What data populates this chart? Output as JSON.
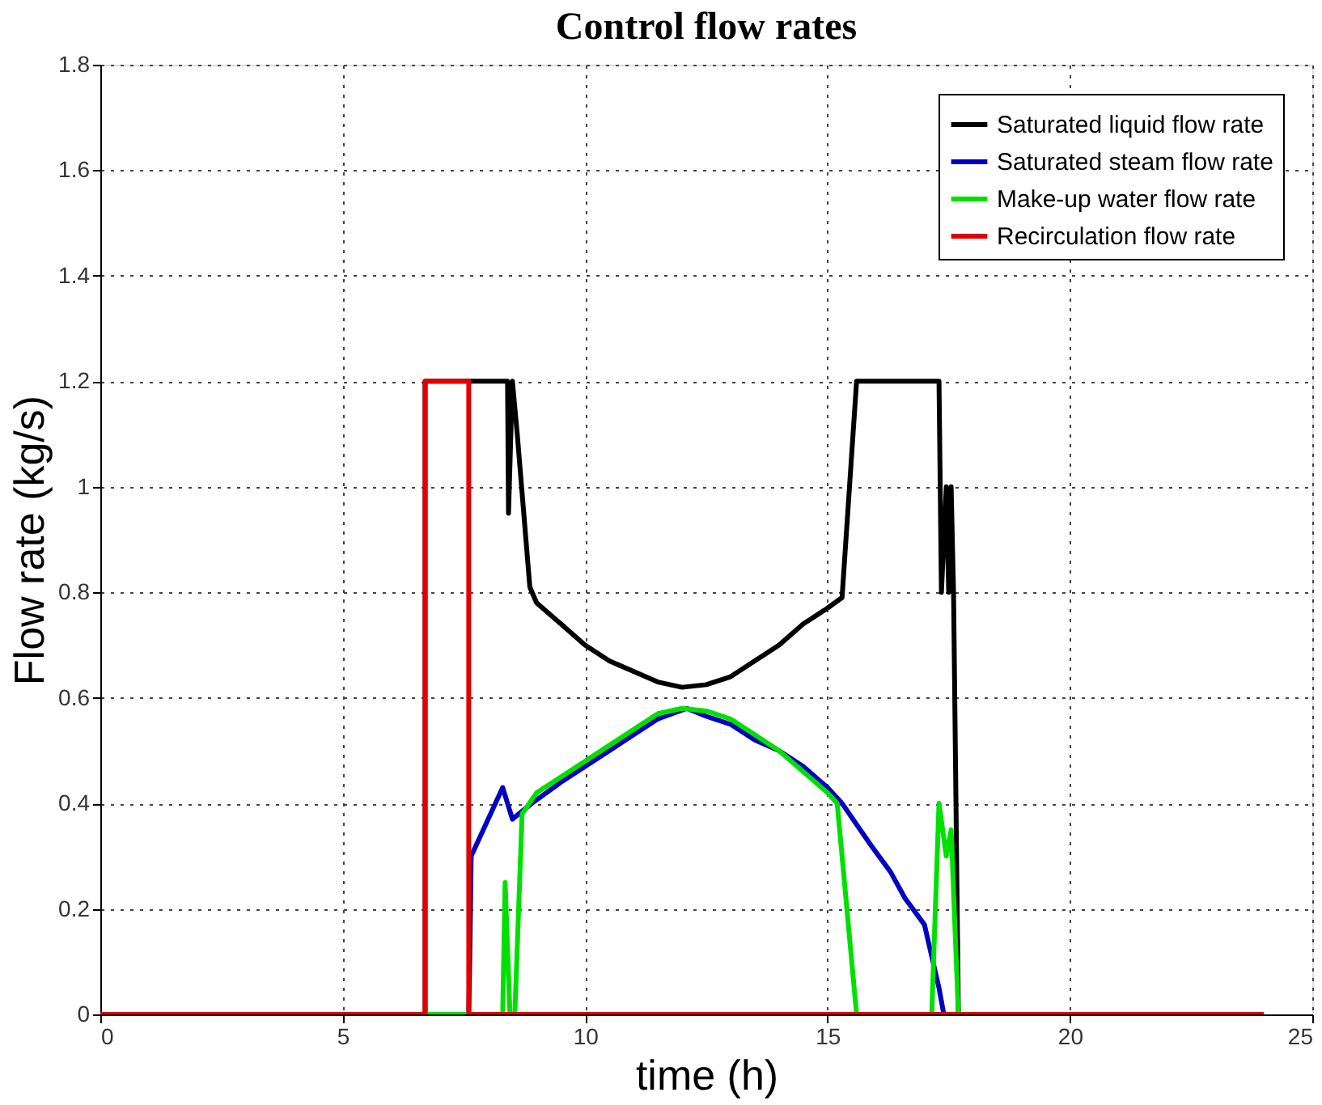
{
  "chart_data": {
    "type": "line",
    "title": "Control flow rates",
    "xlabel": "time (h)",
    "ylabel": "Flow rate (kg/s)",
    "xlim": [
      0,
      25
    ],
    "xticks": [
      0,
      5,
      10,
      15,
      20,
      25
    ],
    "ylim": [
      0,
      1.8
    ],
    "yticks": [
      0,
      0.2,
      0.4,
      0.6,
      0.8,
      1,
      1.2,
      1.4,
      1.6,
      1.8
    ],
    "grid": true,
    "legend": "top right",
    "marker": "none",
    "line_style": "solid",
    "series": [
      {
        "name": "Saturated liquid flow rate",
        "color": "#000000",
        "x": [
          0,
          6.7,
          6.7,
          8.4,
          8.42,
          8.5,
          8.6,
          8.86,
          9.0,
          9.5,
          10,
          10.5,
          11,
          11.5,
          12,
          12.5,
          13,
          13.5,
          14,
          14.5,
          15,
          15.3,
          15.6,
          17.3,
          17.35,
          17.45,
          17.5,
          17.55,
          17.6,
          17.7,
          24
        ],
        "values": [
          0,
          0,
          1.2,
          1.2,
          0.95,
          1.2,
          1.1,
          0.81,
          0.78,
          0.74,
          0.7,
          0.67,
          0.65,
          0.63,
          0.62,
          0.625,
          0.64,
          0.67,
          0.7,
          0.74,
          0.77,
          0.79,
          1.2,
          1.2,
          0.8,
          1.0,
          0.8,
          1.0,
          0.8,
          0,
          0
        ]
      },
      {
        "name": "Saturated steam flow rate",
        "color": "#0000c0",
        "x": [
          0,
          7.6,
          7.62,
          7.65,
          7.9,
          8.3,
          8.5,
          8.9,
          9.5,
          10,
          10.5,
          11,
          11.5,
          12.1,
          12.5,
          13,
          13.5,
          14,
          14.5,
          15,
          15.3,
          15.9,
          16.3,
          16.6,
          17.0,
          17.3,
          17.4,
          24
        ],
        "values": [
          0,
          0,
          0.1,
          0.3,
          0.35,
          0.43,
          0.37,
          0.4,
          0.44,
          0.47,
          0.5,
          0.53,
          0.56,
          0.58,
          0.565,
          0.55,
          0.52,
          0.5,
          0.47,
          0.43,
          0.4,
          0.32,
          0.27,
          0.22,
          0.17,
          0.05,
          0,
          0
        ]
      },
      {
        "name": "Make-up water flow rate",
        "color": "#00e000",
        "x": [
          0,
          8.3,
          8.35,
          8.45,
          8.55,
          8.7,
          9.0,
          9.5,
          10,
          10.5,
          11,
          11.5,
          12,
          12.5,
          13,
          13.5,
          14,
          14.5,
          15,
          15.2,
          15.6,
          17.15,
          17.3,
          17.45,
          17.55,
          17.7,
          24
        ],
        "values": [
          0,
          0,
          0.25,
          0,
          0,
          0.38,
          0.42,
          0.45,
          0.48,
          0.51,
          0.54,
          0.57,
          0.58,
          0.575,
          0.56,
          0.53,
          0.5,
          0.46,
          0.42,
          0.4,
          0,
          0,
          0.4,
          0.3,
          0.35,
          0,
          0
        ]
      },
      {
        "name": "Recirculation flow rate",
        "color": "#e00000",
        "x": [
          0,
          6.7,
          6.7,
          7.6,
          7.6,
          24
        ],
        "values": [
          0,
          0,
          1.2,
          1.2,
          0,
          0
        ]
      }
    ]
  }
}
